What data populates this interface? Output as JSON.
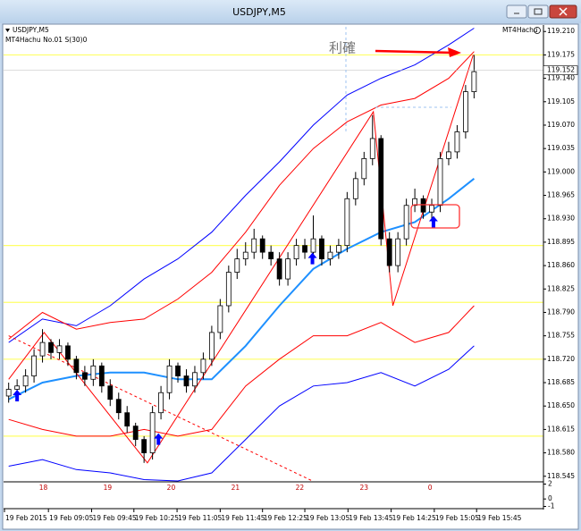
{
  "window_title": "USDJPY,M5",
  "chart_data": {
    "type": "candlestick",
    "label": "USDJPY,M5",
    "indicator_label": "MT4Hachu No.01 S(30)0",
    "ea_label": "MT4Hachu",
    "annotation": "利確",
    "last_price": 119.152,
    "xlim": [
      -0.6,
      63.2
    ],
    "ylim": [
      118.538,
      119.217
    ],
    "yticks": [
      {
        "value": 119.21,
        "label": "119.210"
      },
      {
        "value": 119.175,
        "label": "119.175"
      },
      {
        "value": 119.14,
        "label": "119.140"
      },
      {
        "value": 119.105,
        "label": "119.105"
      },
      {
        "value": 119.07,
        "label": "119.070"
      },
      {
        "value": 119.035,
        "label": "119.035"
      },
      {
        "value": 119.0,
        "label": "119.000"
      },
      {
        "value": 118.965,
        "label": "118.965"
      },
      {
        "value": 118.93,
        "label": "118.930"
      },
      {
        "value": 118.895,
        "label": "118.895"
      },
      {
        "value": 118.86,
        "label": "118.860"
      },
      {
        "value": 118.825,
        "label": "118.825"
      },
      {
        "value": 118.79,
        "label": "118.790"
      },
      {
        "value": 118.755,
        "label": "118.755"
      },
      {
        "value": 118.72,
        "label": "118.720"
      },
      {
        "value": 118.685,
        "label": "118.685"
      },
      {
        "value": 118.65,
        "label": "118.650"
      },
      {
        "value": 118.615,
        "label": "118.615"
      },
      {
        "value": 118.58,
        "label": "118.580"
      },
      {
        "value": 118.545,
        "label": "118.545"
      }
    ],
    "x": [
      0,
      1,
      2,
      3,
      4,
      5,
      6,
      7,
      8,
      9,
      10,
      11,
      12,
      13,
      14,
      15,
      16,
      17,
      18,
      19,
      20,
      21,
      22,
      23,
      24,
      25,
      26,
      27,
      28,
      29,
      30,
      31,
      32,
      33,
      34,
      35,
      36,
      37,
      38,
      39,
      40,
      41,
      42,
      43,
      44,
      45,
      46,
      47,
      48,
      49,
      50,
      51,
      52,
      53,
      54,
      55
    ],
    "open": [
      118.665,
      118.675,
      118.68,
      118.695,
      118.725,
      118.745,
      118.73,
      118.74,
      118.72,
      118.7,
      118.69,
      118.71,
      118.68,
      118.66,
      118.64,
      118.62,
      118.6,
      118.58,
      118.64,
      118.67,
      118.71,
      118.695,
      118.68,
      118.7,
      118.72,
      118.76,
      118.8,
      118.85,
      118.87,
      118.88,
      118.9,
      118.88,
      118.87,
      118.84,
      118.87,
      118.89,
      118.88,
      118.9,
      118.87,
      118.88,
      118.89,
      118.96,
      118.99,
      119.02,
      119.05,
      118.9,
      118.86,
      118.9,
      118.95,
      118.96,
      118.94,
      118.95,
      119.02,
      119.03,
      119.06,
      119.12
    ],
    "high": [
      118.685,
      118.69,
      118.705,
      118.735,
      118.765,
      118.75,
      118.75,
      118.745,
      118.725,
      118.71,
      118.72,
      118.715,
      118.69,
      118.67,
      118.65,
      118.625,
      118.605,
      118.65,
      118.68,
      118.72,
      118.715,
      118.705,
      118.71,
      118.73,
      118.77,
      118.81,
      118.86,
      118.885,
      118.895,
      118.915,
      118.905,
      118.89,
      118.88,
      118.88,
      118.9,
      118.9,
      118.935,
      118.905,
      118.89,
      118.9,
      118.97,
      119.0,
      119.03,
      119.085,
      119.055,
      118.91,
      118.91,
      118.96,
      118.975,
      118.965,
      118.96,
      119.03,
      119.045,
      119.07,
      119.13,
      119.175
    ],
    "low": [
      118.655,
      118.665,
      118.67,
      118.685,
      118.715,
      118.72,
      118.72,
      118.71,
      118.69,
      118.68,
      118.68,
      118.67,
      118.65,
      118.63,
      118.61,
      118.59,
      118.565,
      118.57,
      118.63,
      118.66,
      118.685,
      118.67,
      118.67,
      118.69,
      118.71,
      118.75,
      118.79,
      118.84,
      118.86,
      118.87,
      118.87,
      118.86,
      118.83,
      118.83,
      118.86,
      118.87,
      118.87,
      118.86,
      118.86,
      118.87,
      118.88,
      118.95,
      118.98,
      119.01,
      118.89,
      118.85,
      118.85,
      118.89,
      118.94,
      118.93,
      118.93,
      118.94,
      119.01,
      119.02,
      119.05,
      119.11
    ],
    "close": [
      118.675,
      118.68,
      118.695,
      118.725,
      118.745,
      118.73,
      118.74,
      118.72,
      118.7,
      118.69,
      118.71,
      118.68,
      118.66,
      118.64,
      118.62,
      118.6,
      118.58,
      118.64,
      118.67,
      118.71,
      118.695,
      118.68,
      118.7,
      118.72,
      118.76,
      118.8,
      118.85,
      118.87,
      118.88,
      118.9,
      118.88,
      118.87,
      118.84,
      118.87,
      118.89,
      118.88,
      118.9,
      118.87,
      118.88,
      118.89,
      118.96,
      118.99,
      119.02,
      119.05,
      118.9,
      118.86,
      118.9,
      118.95,
      118.96,
      118.94,
      118.95,
      119.02,
      119.03,
      119.06,
      119.12,
      119.15
    ],
    "overlay_x": [
      0,
      4,
      8,
      12,
      16,
      20,
      24,
      28,
      32,
      36,
      40,
      44,
      48,
      52,
      55
    ],
    "overlays": [
      {
        "color": "#0000ff",
        "values": [
          118.745,
          118.78,
          118.77,
          118.8,
          118.84,
          118.87,
          118.91,
          118.965,
          119.015,
          119.07,
          119.115,
          119.14,
          119.16,
          119.19,
          119.215
        ]
      },
      {
        "color": "#ff0000",
        "values": [
          118.75,
          118.79,
          118.765,
          118.775,
          118.78,
          118.81,
          118.85,
          118.91,
          118.98,
          119.035,
          119.075,
          119.1,
          119.11,
          119.14,
          119.18
        ]
      },
      {
        "color": "#1e90ff",
        "width": 2,
        "values": [
          118.66,
          118.685,
          118.695,
          118.7,
          118.7,
          118.69,
          118.69,
          118.74,
          118.8,
          118.855,
          118.885,
          118.91,
          118.925,
          118.96,
          118.99
        ]
      },
      {
        "color": "#ff0000",
        "values": [
          118.63,
          118.615,
          118.605,
          118.605,
          118.615,
          118.605,
          118.615,
          118.68,
          118.72,
          118.755,
          118.755,
          118.775,
          118.745,
          118.76,
          118.8
        ]
      },
      {
        "color": "#0000ff",
        "values": [
          118.56,
          118.57,
          118.555,
          118.55,
          118.54,
          118.538,
          118.55,
          118.6,
          118.65,
          118.68,
          118.685,
          118.7,
          118.68,
          118.705,
          118.74
        ]
      }
    ],
    "zigzag": {
      "color": "#ff0000",
      "x": [
        0,
        4.2,
        16.4,
        43.1,
        45.4,
        54.9
      ],
      "values": [
        118.69,
        118.76,
        118.565,
        119.09,
        118.8,
        119.175
      ]
    },
    "trendline": {
      "color": "#ff0000",
      "style": "dashed",
      "x": [
        0,
        35.9
      ],
      "values": [
        118.755,
        118.538
      ]
    },
    "levels": {
      "color": "#ffff66",
      "values": [
        119.175,
        118.89,
        118.805,
        118.72,
        118.605
      ]
    },
    "signals": {
      "color": "#0000ff",
      "x": [
        1,
        17.7,
        35.9,
        50.2
      ],
      "values": [
        118.665,
        118.6,
        118.87,
        118.925
      ]
    },
    "hour_labels": {
      "x": [
        4.1,
        11.7,
        19.2,
        26.8,
        34.4,
        42,
        49.8
      ],
      "labels": [
        "18",
        "19",
        "20",
        "21",
        "22",
        "23",
        "0"
      ]
    },
    "sub_ylim": [
      -1.3,
      2.3
    ],
    "sub_yticks": [
      2,
      0,
      -1
    ],
    "time_axis": {
      "x": [
        -0.7,
        4.7,
        9.8,
        14.8,
        19.9,
        25,
        30,
        35,
        40.1,
        45.2,
        50.3,
        55.3
      ],
      "labels": [
        "19 Feb 2015",
        "19 Feb 09:05",
        "19 Feb 09:45",
        "19 Feb 10:25",
        "19 Feb 11:05",
        "19 Feb 11:45",
        "19 Feb 12:25",
        "19 Feb 13:05",
        "19 Feb 13:45",
        "19 Feb 14:25",
        "19 Feb 15:05",
        "19 Feb 15:45"
      ]
    }
  }
}
